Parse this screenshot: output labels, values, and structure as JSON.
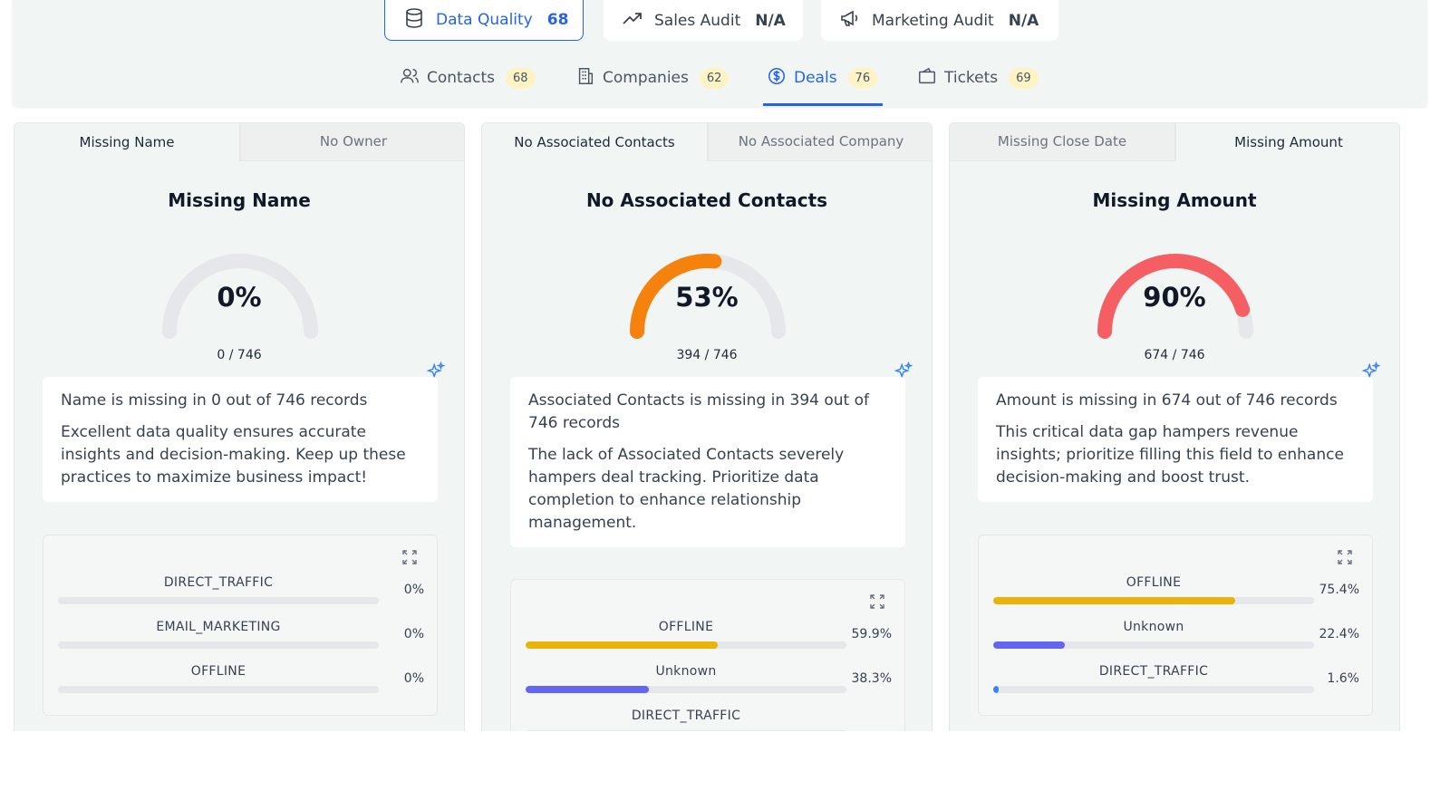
{
  "audit_tabs": [
    {
      "label": "Data Quality",
      "score": "68",
      "icon": "database-icon",
      "active": true
    },
    {
      "label": "Sales Audit",
      "score": "N/A",
      "icon": "trend-up-icon",
      "active": false
    },
    {
      "label": "Marketing Audit",
      "score": "N/A",
      "icon": "megaphone-icon",
      "active": false
    }
  ],
  "object_tabs": [
    {
      "label": "Contacts",
      "count": "68",
      "icon": "users-icon"
    },
    {
      "label": "Companies",
      "count": "62",
      "icon": "building-icon"
    },
    {
      "label": "Deals",
      "count": "76",
      "icon": "dollar-circle-icon",
      "active": true
    },
    {
      "label": "Tickets",
      "count": "69",
      "icon": "ticket-icon"
    }
  ],
  "colors": {
    "accent": "#2563eb",
    "gauge_track": "#e5e7eb",
    "gauge_orange": "#f5820d",
    "gauge_red": "#f55f63",
    "bar_offline": "#eab308",
    "bar_unknown": "#6366f1",
    "bar_direct": "#3b82f6",
    "badge_bg": "#fdf3c4"
  },
  "cards": [
    {
      "tabs": [
        "Missing Name",
        "No Owner"
      ],
      "active_tab": 0,
      "title": "Missing Name",
      "percent": 0,
      "percent_label": "0%",
      "count": "0",
      "total": "746",
      "gauge_color": "#e5e7eb",
      "summary": "Name is missing in 0 out of 746 records",
      "detail": "Excellent data quality ensures accurate insights and decision-making. Keep up these practices to maximize business impact!",
      "sources": [
        {
          "label": "DIRECT_TRAFFIC",
          "value": "0%",
          "pct": 0,
          "color": "#3b82f6"
        },
        {
          "label": "EMAIL_MARKETING",
          "value": "0%",
          "pct": 0,
          "color": "#3b82f6"
        },
        {
          "label": "OFFLINE",
          "value": "0%",
          "pct": 0,
          "color": "#eab308"
        }
      ]
    },
    {
      "tabs": [
        "No Associated Contacts",
        "No Associated Company"
      ],
      "active_tab": 0,
      "title": "No Associated Contacts",
      "percent": 53,
      "percent_label": "53%",
      "count": "394",
      "total": "746",
      "gauge_color": "#f5820d",
      "summary": "Associated Contacts is missing in 394 out of 746 records",
      "detail": "The lack of Associated Contacts severely hampers deal tracking. Prioritize data completion to enhance relationship management.",
      "sources": [
        {
          "label": "OFFLINE",
          "value": "59.9%",
          "pct": 59.9,
          "color": "#eab308"
        },
        {
          "label": "Unknown",
          "value": "38.3%",
          "pct": 38.3,
          "color": "#6366f1"
        },
        {
          "label": "DIRECT_TRAFFIC",
          "value": "",
          "pct": 0,
          "color": "#3b82f6"
        }
      ]
    },
    {
      "tabs": [
        "Missing Close Date",
        "Missing Amount"
      ],
      "active_tab": 1,
      "title": "Missing Amount",
      "percent": 90,
      "percent_label": "90%",
      "count": "674",
      "total": "746",
      "gauge_color": "#f55f63",
      "summary": "Amount is missing in 674 out of 746 records",
      "detail": "This critical data gap hampers revenue insights; prioritize filling this field to enhance decision-making and boost trust.",
      "sources": [
        {
          "label": "OFFLINE",
          "value": "75.4%",
          "pct": 75.4,
          "color": "#eab308"
        },
        {
          "label": "Unknown",
          "value": "22.4%",
          "pct": 22.4,
          "color": "#6366f1"
        },
        {
          "label": "DIRECT_TRAFFIC",
          "value": "1.6%",
          "pct": 1.6,
          "color": "#3b82f6"
        }
      ]
    }
  ]
}
